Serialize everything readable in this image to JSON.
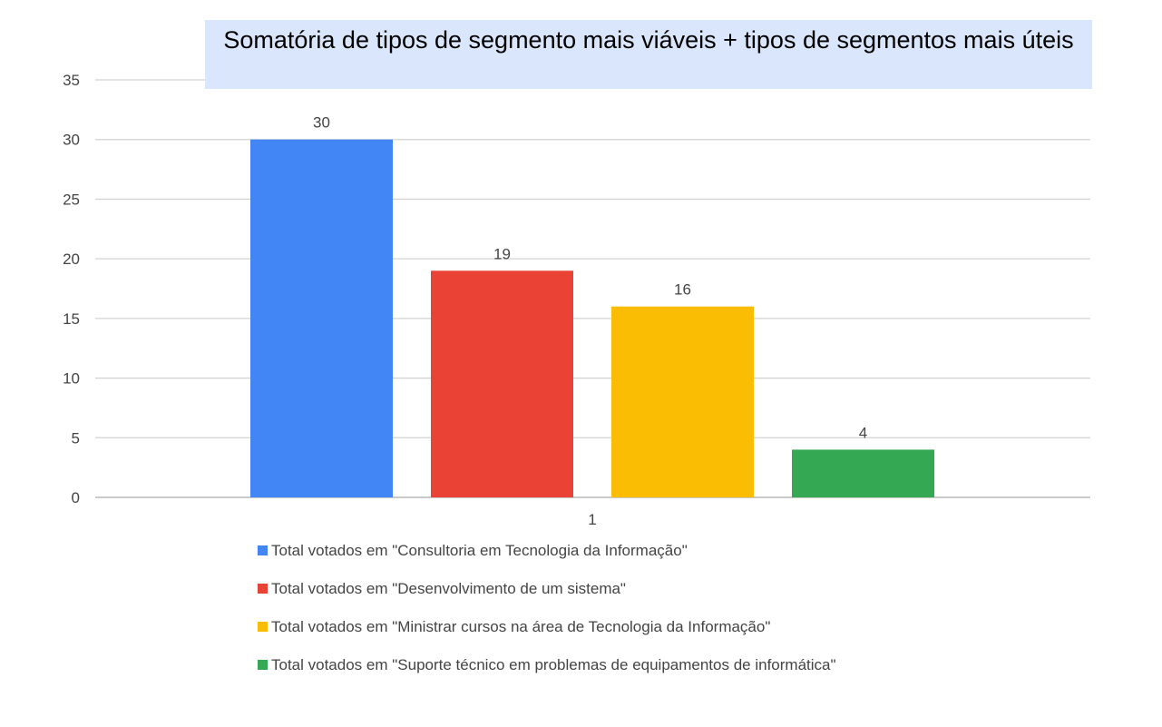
{
  "chart_data": {
    "type": "bar",
    "title": "Somatória de tipos de segmento mais viáveis + tipos de segmentos mais úteis",
    "categories": [
      "1"
    ],
    "series": [
      {
        "name": "Total votados em \"Consultoria em Tecnologia da Informação\"",
        "values": [
          30
        ],
        "color": "#4285f4"
      },
      {
        "name": "Total votados em \"Desenvolvimento de um sistema\"",
        "values": [
          19
        ],
        "color": "#ea4335"
      },
      {
        "name": "Total votados em \"Ministrar cursos na área de Tecnologia da Informação\"",
        "values": [
          16
        ],
        "color": "#fbbc04"
      },
      {
        "name": "Total votados em \"Suporte técnico em problemas de equipamentos de informática\"",
        "values": [
          4
        ],
        "color": "#34a853"
      }
    ],
    "yticks": [
      0,
      5,
      10,
      15,
      20,
      25,
      30,
      35
    ],
    "ylim": [
      0,
      35
    ],
    "grid": true,
    "legend_position": "bottom"
  }
}
